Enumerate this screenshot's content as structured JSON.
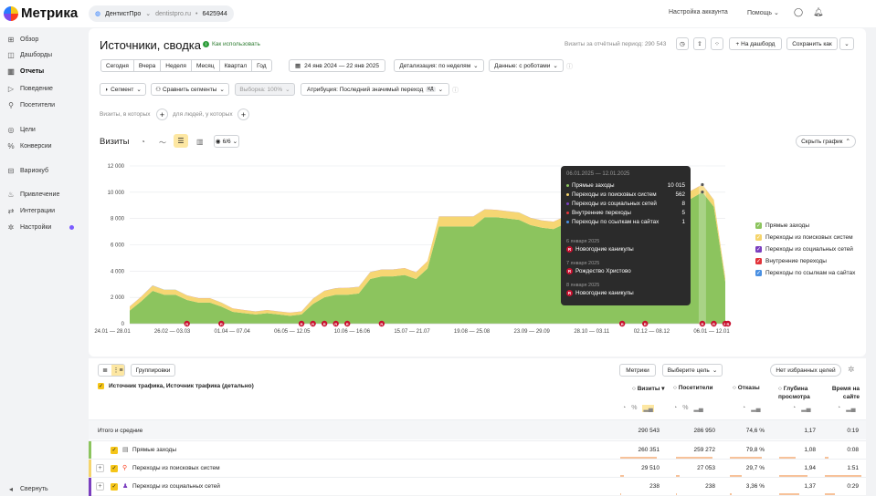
{
  "app": {
    "name": "Метрика",
    "counter_name": "ДентистПро",
    "counter_domain": "dentistpro.ru",
    "counter_id": "6425944"
  },
  "topbar": {
    "account_settings": "Настройка аккаунта",
    "help": "Помощь"
  },
  "sidebar": {
    "items": [
      {
        "label": "Обзор",
        "icon": "grid-icon"
      },
      {
        "label": "Дашборды",
        "icon": "dashboard-icon"
      },
      {
        "label": "Отчеты",
        "icon": "reports-icon",
        "active": true
      },
      {
        "label": "Поведение",
        "icon": "play-icon"
      },
      {
        "label": "Посетители",
        "icon": "user-icon"
      },
      {
        "label": "Цели",
        "icon": "target-icon"
      },
      {
        "label": "Конверсии",
        "icon": "percent-icon"
      },
      {
        "label": "Вариокуб",
        "icon": "cube-icon"
      },
      {
        "label": "Привлечение",
        "icon": "flame-icon"
      },
      {
        "label": "Интеграции",
        "icon": "plug-icon"
      },
      {
        "label": "Настройки",
        "icon": "gear-icon"
      }
    ],
    "collapse": "Свернуть"
  },
  "header": {
    "title": "Источники, сводка",
    "how_to": "Как использовать",
    "visits_period": "Визиты за отчётный период: 290 543",
    "to_dashboard": "+ На дашборд",
    "save_as": "Сохранить как"
  },
  "periods": [
    "Сегодня",
    "Вчера",
    "Неделя",
    "Месяц",
    "Квартал",
    "Год"
  ],
  "date_range": "24 янв 2024 — 22 янв 2025",
  "detail": "Детализация: по неделям",
  "data_mode": "Данные: с роботами",
  "segment": "Сегмент",
  "compare": "Сравнить сегменты",
  "sample": "Выборка: 100%",
  "attribution": "Атрибуция: Последний значимый переход",
  "attribution_badge": "КД",
  "filter_visits": "Визиты, в которых",
  "filter_people": "для людей, у которых",
  "chart_header": {
    "label": "Визиты",
    "series_count": "6/6",
    "hide_chart": "Скрыть график"
  },
  "chart_data": {
    "type": "area",
    "stacked": true,
    "title": "Визиты",
    "ylim": [
      0,
      12000
    ],
    "yticks": [
      0,
      2000,
      4000,
      6000,
      8000,
      10000,
      12000
    ],
    "ytick_labels": [
      "0",
      "2 000",
      "4 000",
      "6 000",
      "8 000",
      "10 000",
      "12 000"
    ],
    "xtick_labels": [
      "24.01 — 28.01",
      "26.02 — 03.03",
      "01.04 — 07.04",
      "06.05 — 12.05",
      "10.06 — 16.06",
      "15.07 — 21.07",
      "19.08 — 25.08",
      "23.09 — 29.09",
      "28.10 — 03.11",
      "02.12 — 08.12",
      "06.01 — 12.01"
    ],
    "series": [
      {
        "name": "Прямые заходы",
        "color": "#8cc45e",
        "values": [
          1000,
          1700,
          2500,
          2200,
          2200,
          1800,
          1600,
          1600,
          1300,
          900,
          800,
          700,
          800,
          700,
          600,
          700,
          1500,
          2000,
          2200,
          2200,
          2300,
          3400,
          3600,
          3600,
          3700,
          3400,
          4200,
          7400,
          7400,
          7400,
          7400,
          8100,
          8100,
          8000,
          7900,
          7500,
          7300,
          7200,
          7600,
          8000,
          8600,
          8900,
          8900,
          9000,
          9100,
          9200,
          9300,
          9300,
          9400,
          9500,
          10015,
          8900,
          3200
        ]
      },
      {
        "name": "Переходы из поисковых систем",
        "color": "#f5d46b",
        "values": [
          300,
          350,
          400,
          380,
          380,
          350,
          330,
          330,
          300,
          250,
          230,
          230,
          230,
          230,
          230,
          230,
          400,
          500,
          500,
          520,
          500,
          520,
          520,
          520,
          520,
          500,
          550,
          750,
          750,
          750,
          750,
          600,
          550,
          550,
          550,
          550,
          550,
          550,
          550,
          550,
          600,
          600,
          600,
          600,
          600,
          600,
          600,
          600,
          600,
          600,
          562,
          520,
          300
        ]
      },
      {
        "name": "Переходы из социальных сетей",
        "color": "#7b3fbf",
        "values": [
          5,
          5,
          5,
          5,
          5,
          5,
          5,
          5,
          5,
          5,
          5,
          5,
          5,
          5,
          5,
          5,
          5,
          5,
          5,
          5,
          5,
          5,
          5,
          5,
          5,
          5,
          5,
          5,
          5,
          5,
          5,
          5,
          5,
          5,
          5,
          5,
          5,
          5,
          5,
          5,
          5,
          5,
          5,
          5,
          5,
          5,
          5,
          5,
          5,
          5,
          8,
          5,
          5
        ]
      },
      {
        "name": "Внутренние переходы",
        "color": "#e2343b",
        "values": [
          3,
          3,
          3,
          3,
          3,
          3,
          3,
          3,
          3,
          3,
          3,
          3,
          3,
          3,
          3,
          3,
          3,
          3,
          3,
          3,
          3,
          3,
          3,
          3,
          3,
          3,
          3,
          3,
          3,
          3,
          3,
          3,
          3,
          3,
          3,
          3,
          3,
          3,
          3,
          3,
          3,
          3,
          3,
          3,
          3,
          3,
          3,
          3,
          3,
          3,
          5,
          3,
          3
        ]
      },
      {
        "name": "Переходы по ссылкам на сайтах",
        "color": "#4a90e2",
        "values": [
          1,
          1,
          1,
          1,
          1,
          1,
          1,
          1,
          1,
          1,
          1,
          1,
          1,
          1,
          1,
          1,
          1,
          1,
          1,
          1,
          1,
          1,
          1,
          1,
          1,
          1,
          1,
          1,
          1,
          1,
          1,
          1,
          1,
          1,
          1,
          1,
          1,
          1,
          1,
          1,
          1,
          1,
          1,
          1,
          1,
          1,
          1,
          1,
          1,
          1,
          1,
          1,
          1
        ]
      }
    ],
    "holiday_weeks": [
      5,
      8,
      15,
      16,
      17,
      18,
      19,
      22,
      43,
      45,
      50,
      51,
      52,
      53
    ],
    "highlight_week": 50
  },
  "tooltip": {
    "period": "06.01.2025 — 12.01.2025",
    "rows": [
      {
        "label": "Прямые заходы",
        "value": "10 015",
        "color": "#8cc45e"
      },
      {
        "label": "Переходы из поисковых систем",
        "value": "562",
        "color": "#f5d46b"
      },
      {
        "label": "Переходы из социальных сетей",
        "value": "8",
        "color": "#7b3fbf"
      },
      {
        "label": "Внутренние переходы",
        "value": "5",
        "color": "#e2343b"
      },
      {
        "label": "Переходы по ссылкам на сайтах",
        "value": "1",
        "color": "#4a90e2"
      }
    ],
    "holidays": [
      {
        "date": "6 января 2025",
        "name": "Новогодние каникулы"
      },
      {
        "date": "7 января 2025",
        "name": "Рождество Христово"
      },
      {
        "date": "8 января 2025",
        "name": "Новогодние каникулы"
      }
    ]
  },
  "table": {
    "groupings": "Группировки",
    "metrics": "Метрики",
    "choose_goal": "Выберите цель",
    "no_fav_goals": "Нет избранных целей",
    "dimension_header": "Источник трафика, Источник трафика (детально)",
    "columns": [
      "Визиты",
      "Посетители",
      "Отказы",
      "Глубина просмотра",
      "Время на сайте"
    ],
    "totals": {
      "label": "Итого и средние",
      "values": [
        "290 543",
        "286 950",
        "74,6 %",
        "1,17",
        "0:19"
      ]
    },
    "rows": [
      {
        "label": "Прямые заходы",
        "color": "#8cc45e",
        "values": [
          "260 351",
          "259 272",
          "79,8 %",
          "1,08",
          "0:08"
        ],
        "bars": [
          0.9,
          0.9,
          0.8,
          0.4,
          0.1
        ]
      },
      {
        "label": "Переходы из поисковых систем",
        "color": "#f5d46b",
        "values": [
          "29 510",
          "27 053",
          "29,7 %",
          "1,94",
          "1:51"
        ],
        "bars": [
          0.1,
          0.1,
          0.3,
          0.7,
          0.9
        ]
      },
      {
        "label": "Переходы из социальных сетей",
        "color": "#7b3fbf",
        "values": [
          "238",
          "238",
          "3,36 %",
          "1,37",
          "0:29"
        ],
        "bars": [
          0.02,
          0.02,
          0.04,
          0.5,
          0.25
        ]
      }
    ]
  }
}
